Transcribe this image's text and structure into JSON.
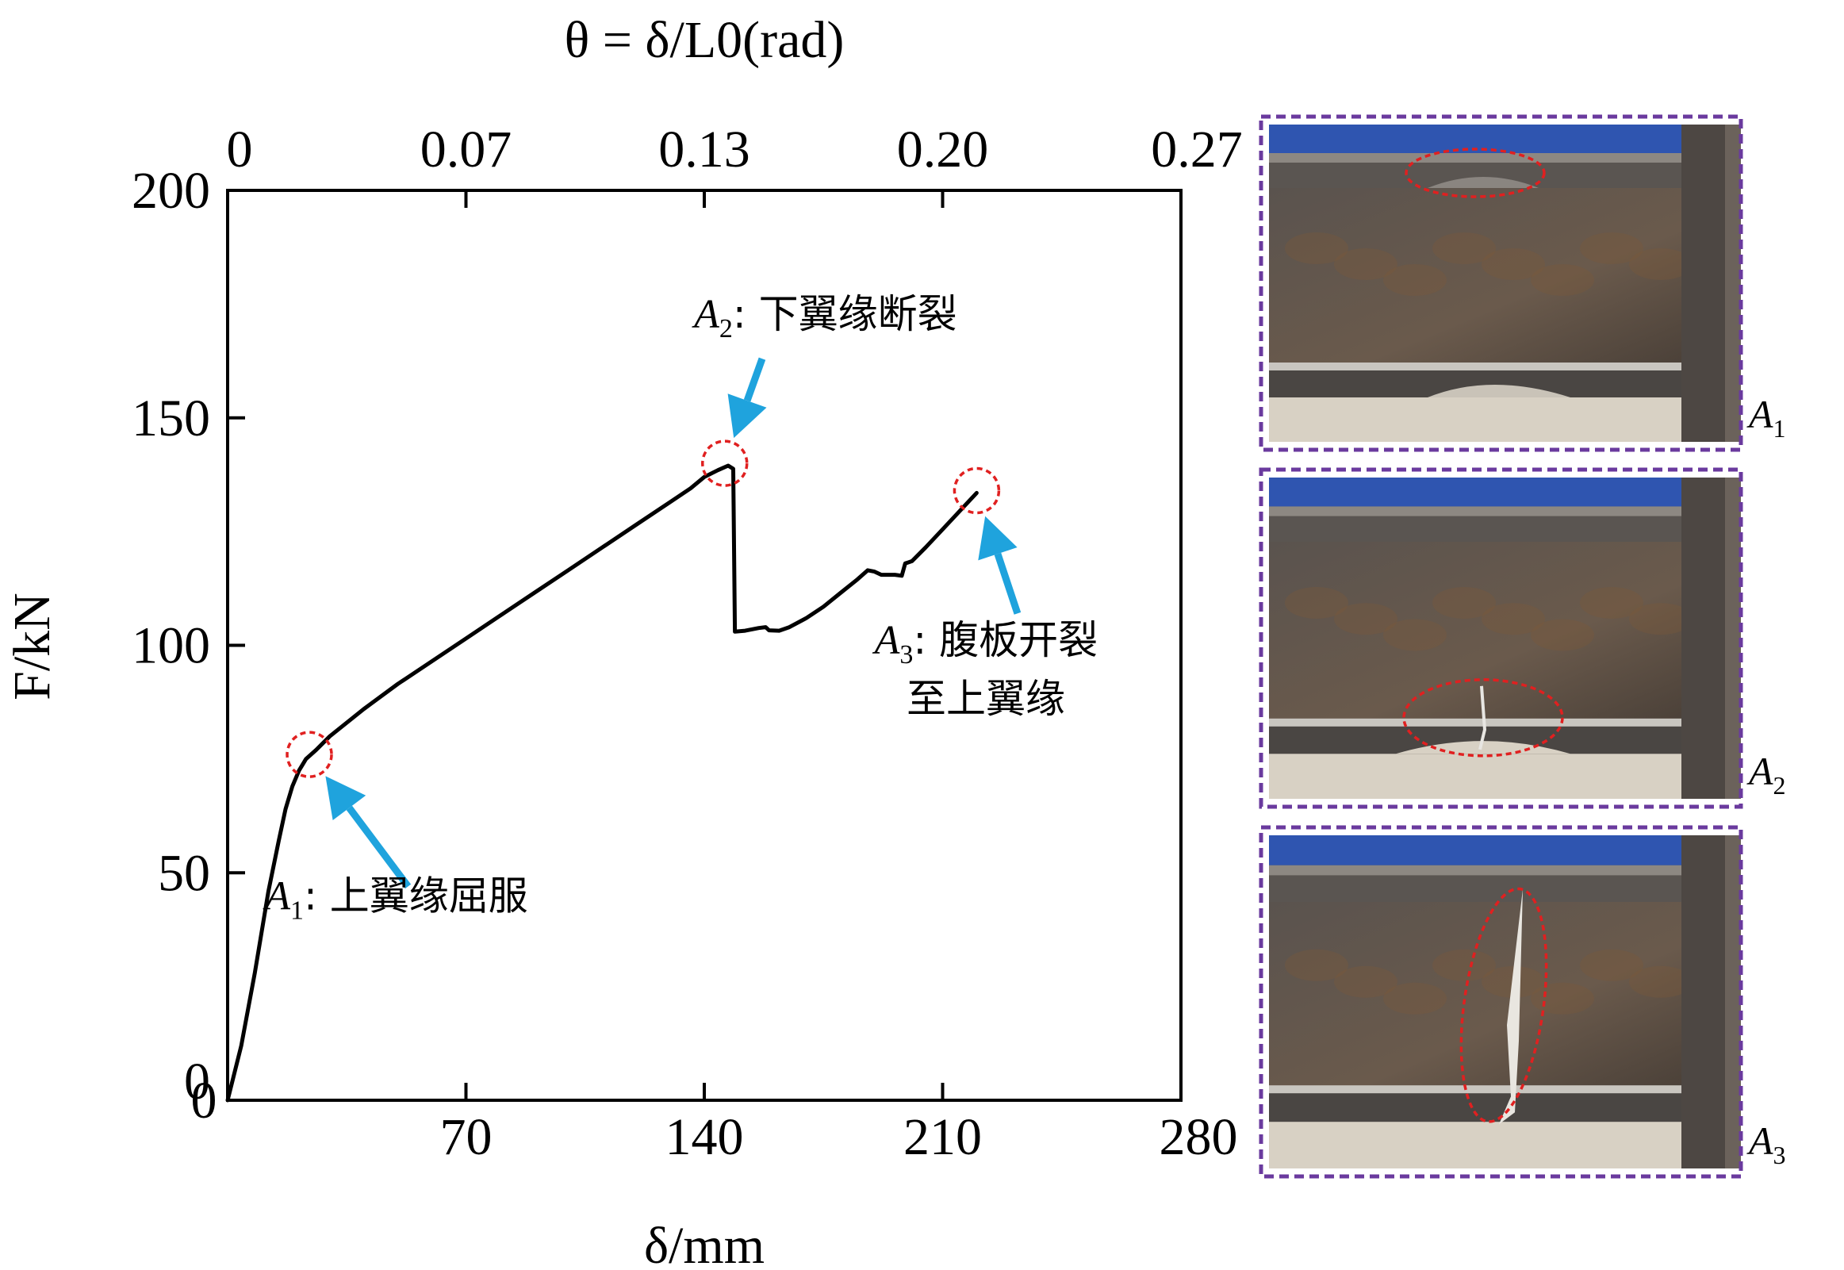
{
  "chart_data": {
    "type": "line",
    "title": "",
    "xlabel": "δ/mm",
    "ylabel": "F/kN",
    "top_xlabel": "θ = δ/L0(rad)",
    "xlim": [
      0,
      280
    ],
    "ylim": [
      0,
      200
    ],
    "xticks": [
      0,
      70,
      140,
      210,
      280
    ],
    "yticks": [
      0,
      50,
      100,
      150,
      200
    ],
    "top_ticks": [
      {
        "x": 0,
        "label": "0"
      },
      {
        "x": 70,
        "label": "0.07"
      },
      {
        "x": 140,
        "label": "0.13"
      },
      {
        "x": 210,
        "label": "0.20"
      },
      {
        "x": 280,
        "label": "0.27"
      }
    ],
    "series": [
      {
        "name": "F-δ curve",
        "color": "#000000",
        "points": [
          [
            0,
            0
          ],
          [
            4,
            12
          ],
          [
            8,
            28
          ],
          [
            12,
            46
          ],
          [
            15,
            57
          ],
          [
            17,
            64
          ],
          [
            19,
            69
          ],
          [
            21,
            72.5
          ],
          [
            23,
            75
          ],
          [
            26,
            77
          ],
          [
            30,
            80
          ],
          [
            40,
            86
          ],
          [
            50,
            91.5
          ],
          [
            60,
            96.5
          ],
          [
            70,
            101.5
          ],
          [
            80,
            106.5
          ],
          [
            90,
            111.5
          ],
          [
            100,
            116.5
          ],
          [
            110,
            121.5
          ],
          [
            120,
            126.5
          ],
          [
            130,
            131.5
          ],
          [
            136,
            134.5
          ],
          [
            140,
            137
          ],
          [
            144,
            138.5
          ],
          [
            147,
            139.5
          ],
          [
            148.5,
            138.8
          ],
          [
            149,
            103
          ],
          [
            152,
            103.2
          ],
          [
            156,
            103.8
          ],
          [
            158,
            104
          ],
          [
            159,
            103.3
          ],
          [
            162,
            103.2
          ],
          [
            165,
            104
          ],
          [
            170,
            106
          ],
          [
            175,
            108.5
          ],
          [
            180,
            111.5
          ],
          [
            185,
            114.5
          ],
          [
            188,
            116.5
          ],
          [
            190,
            116.2
          ],
          [
            192,
            115.5
          ],
          [
            196,
            115.5
          ],
          [
            198,
            115.3
          ],
          [
            199,
            118
          ],
          [
            201,
            118.5
          ],
          [
            205,
            121.5
          ],
          [
            210,
            125.5
          ],
          [
            215,
            129.5
          ],
          [
            220,
            133.5
          ]
        ]
      }
    ],
    "annotations": [
      {
        "id": "A1",
        "label": "A",
        "sub": "1",
        "text": "上翼缘屈服",
        "at": [
          24,
          76
        ],
        "arrow_from": [
          53,
          47
        ]
      },
      {
        "id": "A2",
        "label": "A",
        "sub": "2",
        "text": "下翼缘断裂",
        "at": [
          146,
          140
        ],
        "arrow_from": [
          157,
          163
        ]
      },
      {
        "id": "A3",
        "label": "A",
        "sub": "3",
        "text": "腹板开裂",
        "text2": "至上翼缘",
        "at": [
          220,
          134
        ],
        "arrow_from": [
          232,
          107
        ]
      }
    ],
    "highlight_color": "#e02020",
    "arrow_color": "#1fa3dd"
  },
  "photos": [
    {
      "label": "A",
      "sub": "1"
    },
    {
      "label": "A",
      "sub": "2"
    },
    {
      "label": "A",
      "sub": "3"
    }
  ],
  "frame_color": "#6a3a9e"
}
